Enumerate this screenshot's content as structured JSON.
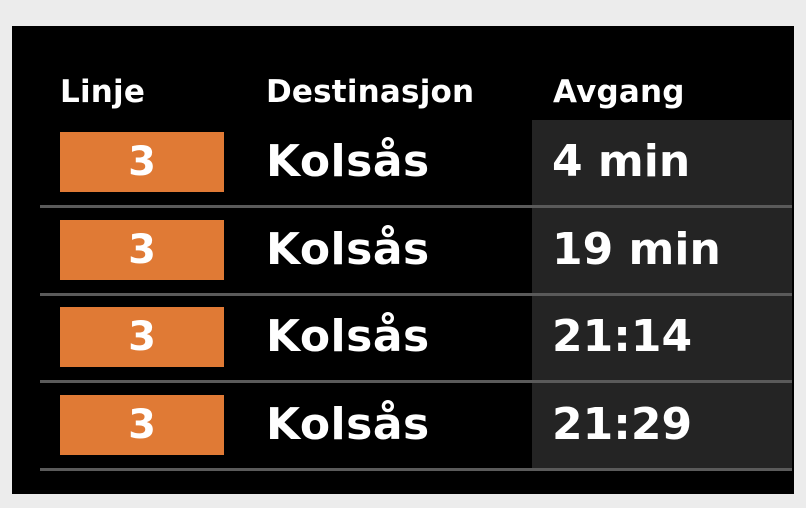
{
  "header": {
    "line_label": "Linje",
    "destination_label": "Destinasjon",
    "departure_label": "Avgang"
  },
  "departures": [
    {
      "line": "3",
      "destination": "Kolsås",
      "departure": "4 min"
    },
    {
      "line": "3",
      "destination": "Kolsås",
      "departure": "19 min"
    },
    {
      "line": "3",
      "destination": "Kolsås",
      "departure": "21:14"
    },
    {
      "line": "3",
      "destination": "Kolsås",
      "departure": "21:29"
    }
  ],
  "colors": {
    "line_badge": "#e07a35",
    "board_background": "#000000",
    "departure_column_background": "#242424",
    "divider": "#5a5a5a",
    "text": "#ffffff"
  }
}
